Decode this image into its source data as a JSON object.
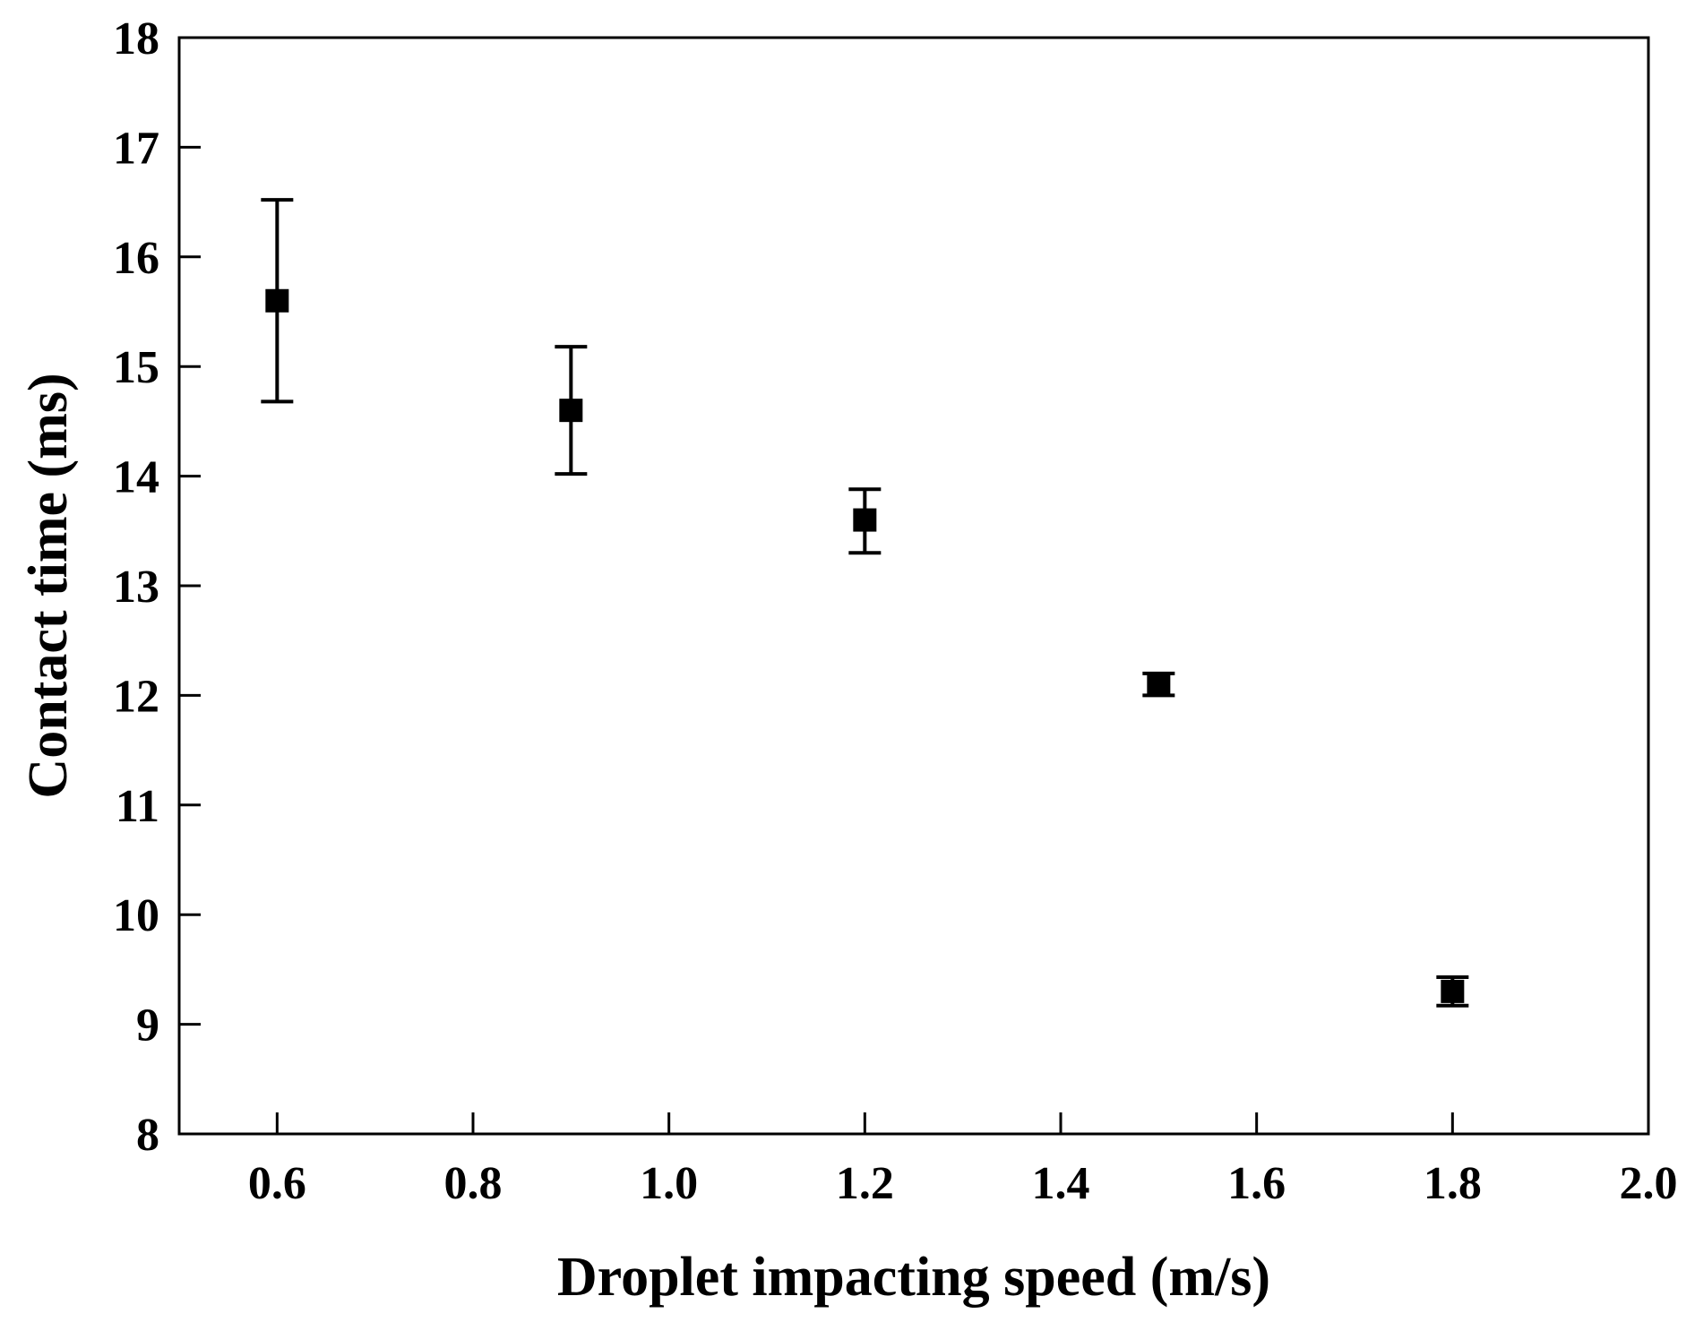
{
  "chart_data": {
    "type": "scatter",
    "title": "",
    "xlabel": "Droplet impacting speed (m/s)",
    "ylabel": "Contact time (ms)",
    "xlim": [
      0.5,
      2.0
    ],
    "ylim": [
      8,
      18
    ],
    "xticks": [
      0.6,
      0.8,
      1.0,
      1.2,
      1.4,
      1.6,
      1.8,
      2.0
    ],
    "xtick_labels": [
      "0.6",
      "0.8",
      "1.0",
      "1.2",
      "1.4",
      "1.6",
      "1.8",
      "2.0"
    ],
    "yticks": [
      8,
      9,
      10,
      11,
      12,
      13,
      14,
      15,
      16,
      17,
      18
    ],
    "ytick_labels": [
      "8",
      "9",
      "10",
      "11",
      "12",
      "13",
      "14",
      "15",
      "16",
      "17",
      "18"
    ],
    "grid": false,
    "legend": null,
    "marker": "square",
    "color": "#000000",
    "series": [
      {
        "name": "Contact time",
        "x": [
          0.6,
          0.9,
          1.2,
          1.5,
          1.8
        ],
        "y": [
          15.6,
          14.6,
          13.6,
          12.1,
          9.3
        ],
        "error_low": [
          14.68,
          14.02,
          13.3,
          12.0,
          9.17
        ],
        "error_high": [
          16.52,
          15.18,
          13.88,
          12.2,
          9.43
        ]
      }
    ]
  }
}
